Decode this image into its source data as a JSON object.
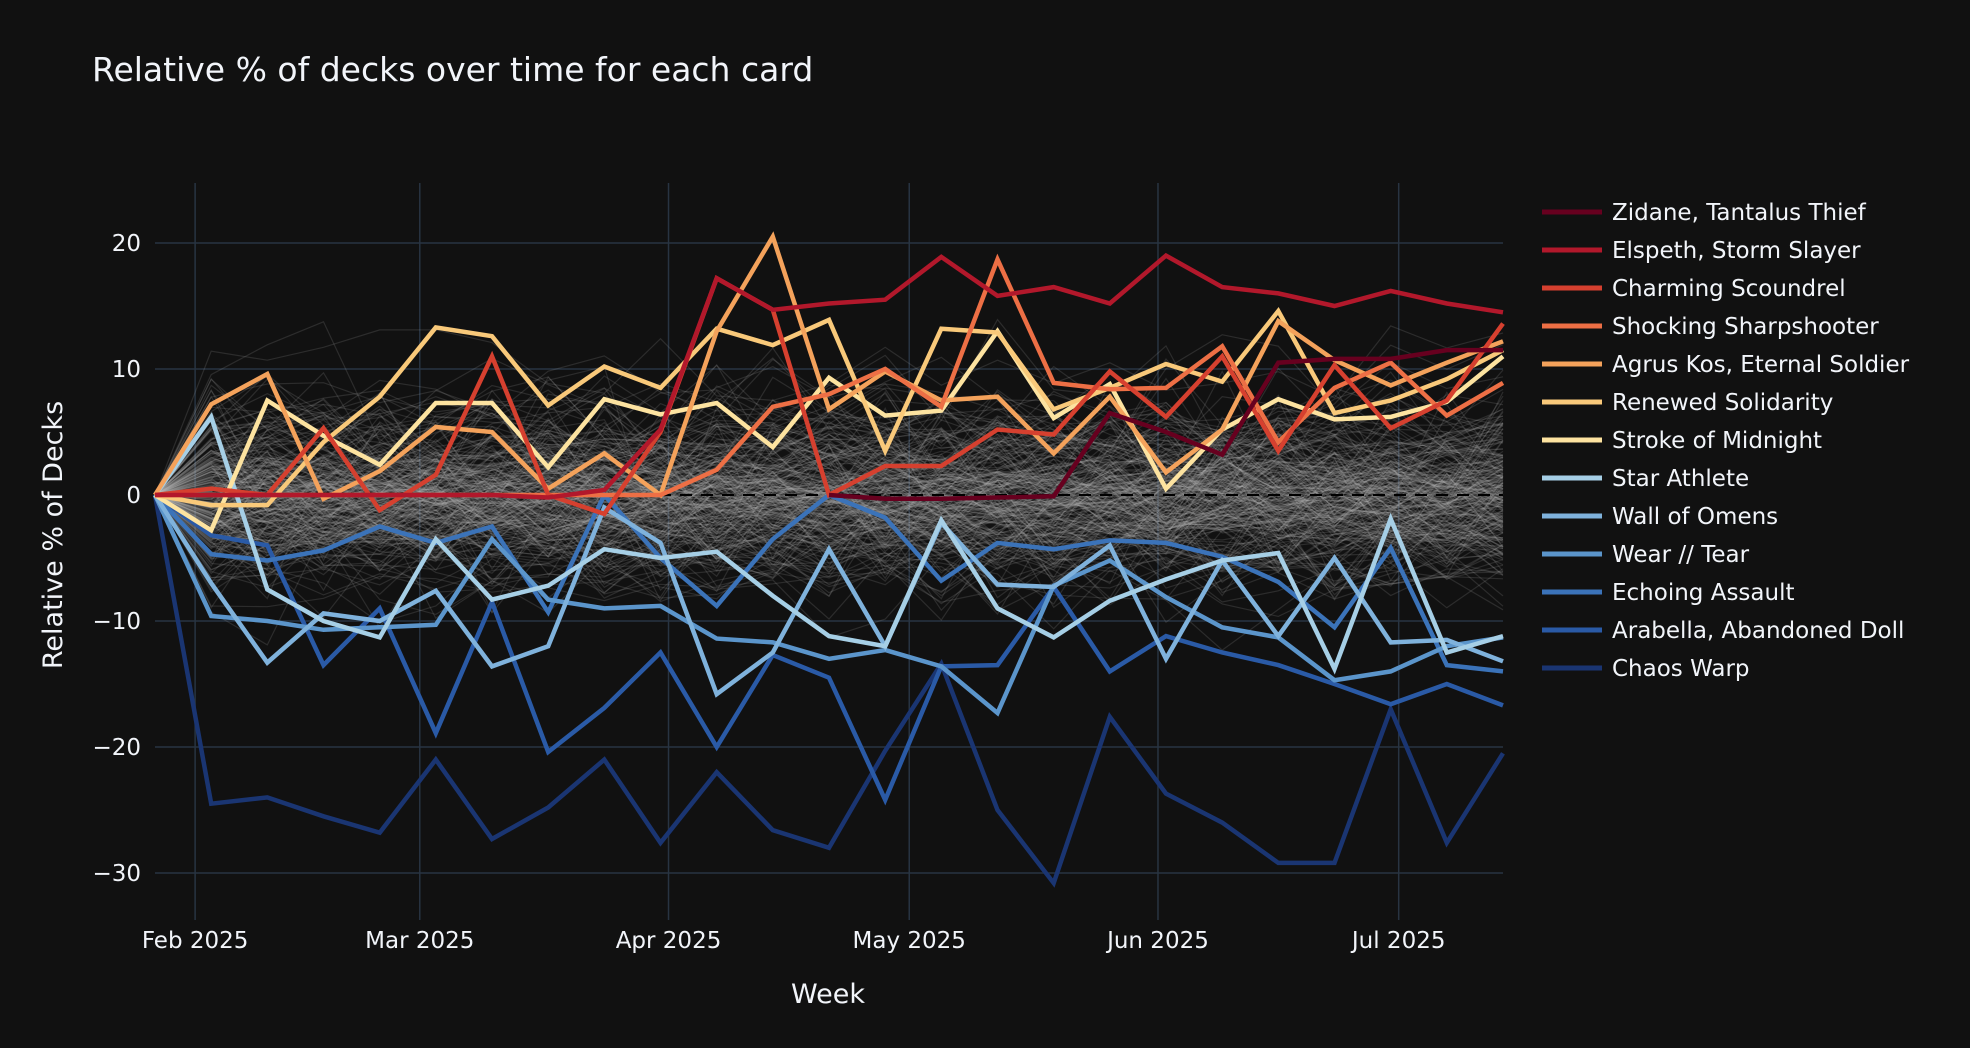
{
  "chart_data": {
    "type": "line",
    "title": "Relative  % of decks over time for each card",
    "xlabel": "Week",
    "ylabel": "Relative % of Decks",
    "ylim": [
      -33.5,
      25
    ],
    "yticks": [
      20,
      10,
      0,
      -10,
      -20,
      -30
    ],
    "ytick_labels": [
      "20",
      "10",
      "0",
      "−10",
      "−20",
      "−30"
    ],
    "x_start": "2025-01-27",
    "x_end": "2025-07-14",
    "x_interval_days": 7,
    "xticks": [
      {
        "date": "2025-02-01",
        "label": "Feb 2025"
      },
      {
        "date": "2025-03-01",
        "label": "Mar 2025"
      },
      {
        "date": "2025-04-01",
        "label": "Apr 2025"
      },
      {
        "date": "2025-05-01",
        "label": "May 2025"
      },
      {
        "date": "2025-06-01",
        "label": "Jun 2025"
      },
      {
        "date": "2025-07-01",
        "label": "Jul 2025"
      }
    ],
    "grid": true,
    "zero_line": "dashed",
    "legend_position": "right",
    "background_series": {
      "description": "other cards (unlabeled, faint gray)",
      "count": 260,
      "color": "#bbbbbb"
    },
    "series": [
      {
        "name": "Zidane, Tantalus Thief",
        "color": "#67001f",
        "values": [
          null,
          null,
          null,
          null,
          null,
          null,
          null,
          null,
          null,
          null,
          null,
          null,
          0,
          -0.3,
          -0.3,
          -0.2,
          -0.1,
          6.5,
          5.0,
          3.2,
          10.5,
          10.8,
          10.8,
          11.5,
          11.5
        ]
      },
      {
        "name": "Elspeth, Storm Slayer",
        "color": "#b2182b",
        "values": [
          0,
          0,
          0,
          0,
          0,
          0,
          0,
          -0.2,
          0.4,
          5.2,
          17.2,
          14.7,
          15.2,
          15.5,
          18.9,
          15.8,
          16.5,
          15.2,
          19.0,
          16.5,
          16.0,
          15.0,
          16.2,
          15.2,
          14.5
        ]
      },
      {
        "name": "Charming Scoundrel",
        "color": "#d6402f",
        "values": [
          0,
          0.5,
          0,
          5.3,
          -1.2,
          1.6,
          11.0,
          0,
          -1.5,
          5.0,
          17.2,
          14.7,
          0,
          2.3,
          2.3,
          5.2,
          4.8,
          9.8,
          6.2,
          11.0,
          3.5,
          10.3,
          5.3,
          7.5,
          13.6
        ]
      },
      {
        "name": "Shocking Sharpshooter",
        "color": "#ed6f45",
        "values": [
          0,
          0,
          0,
          0,
          0,
          0,
          0,
          0,
          0,
          0,
          2.0,
          7.0,
          8.0,
          10.0,
          7.0,
          18.7,
          8.9,
          8.4,
          8.5,
          11.8,
          4.2,
          8.5,
          10.5,
          6.3,
          8.9
        ]
      },
      {
        "name": "Agrus Kos, Eternal Soldier",
        "color": "#f4a25b",
        "values": [
          0,
          7.2,
          9.6,
          -0.3,
          1.9,
          5.4,
          5.0,
          0.5,
          3.3,
          0,
          13.0,
          20.5,
          6.8,
          9.8,
          7.5,
          7.8,
          3.3,
          7.8,
          1.8,
          5.2,
          13.8,
          10.7,
          8.7,
          10.5,
          12.2
        ]
      },
      {
        "name": "Renewed Solidarity",
        "color": "#f9c97a",
        "values": [
          0,
          -0.8,
          -0.8,
          4.2,
          7.8,
          13.3,
          12.6,
          7.1,
          10.2,
          8.5,
          13.2,
          11.9,
          13.9,
          3.5,
          13.2,
          12.9,
          6.8,
          8.5,
          10.4,
          9.0,
          14.6,
          6.5,
          7.5,
          9.2,
          11.5
        ]
      },
      {
        "name": "Stroke of Midnight",
        "color": "#fde3a0",
        "values": [
          0,
          -2.8,
          7.5,
          4.7,
          2.4,
          7.3,
          7.3,
          2.2,
          7.6,
          6.4,
          7.3,
          3.8,
          9.3,
          6.3,
          6.7,
          13.0,
          6.1,
          8.8,
          0.5,
          5.2,
          7.6,
          6.0,
          6.2,
          7.4,
          11.0
        ]
      },
      {
        "name": "Star Athlete",
        "color": "#a6cfe6",
        "values": [
          0,
          6.2,
          -7.5,
          -10.0,
          -11.3,
          -3.5,
          -8.3,
          -7.2,
          -4.3,
          -5.0,
          -4.5,
          -8.0,
          -11.2,
          -12.0,
          -2.0,
          -9.0,
          -11.3,
          -8.4,
          -6.7,
          -5.2,
          -4.6,
          -13.8,
          -1.9,
          -12.5,
          -11.2
        ]
      },
      {
        "name": "Wall of Omens",
        "color": "#7fb2dc",
        "values": [
          0,
          -7.0,
          -13.3,
          -9.4,
          -10.0,
          -7.6,
          -13.6,
          -12.0,
          -1.0,
          -3.8,
          -15.8,
          -12.5,
          -4.3,
          -12.0,
          -2.2,
          -7.1,
          -7.3,
          -4.0,
          -13.0,
          -5.2,
          -11.2,
          -5.0,
          -11.7,
          -11.5,
          -13.2
        ]
      },
      {
        "name": "Wear // Tear",
        "color": "#5b95cb",
        "values": [
          0,
          -9.6,
          -10.0,
          -10.7,
          -10.5,
          -10.3,
          -3.5,
          -8.3,
          -9.0,
          -8.8,
          -11.4,
          -11.7,
          -13.0,
          -12.3,
          -13.6,
          -17.3,
          -7.2,
          -5.2,
          -8.1,
          -10.5,
          -11.3,
          -14.7,
          -14.0,
          -12.0,
          -11.3
        ]
      },
      {
        "name": "Echoing Assault",
        "color": "#3b73b9",
        "values": [
          0,
          -4.7,
          -5.2,
          -4.4,
          -2.5,
          -3.8,
          -2.5,
          -9.3,
          0,
          -5.0,
          -8.8,
          -3.5,
          0,
          -1.8,
          -6.8,
          -3.8,
          -4.3,
          -3.6,
          -3.8,
          -4.9,
          -6.9,
          -10.5,
          -4.2,
          -13.5,
          -14.0
        ]
      },
      {
        "name": "Arabella, Abandoned Doll",
        "color": "#2a5aa6",
        "values": [
          0,
          -3.2,
          -4.0,
          -13.5,
          -9.0,
          -18.9,
          -8.5,
          -20.4,
          -16.9,
          -12.5,
          -20.0,
          -12.7,
          -14.5,
          -24.2,
          -13.6,
          -13.5,
          -7.3,
          -14.0,
          -11.2,
          -12.5,
          -13.5,
          -15.0,
          -16.6,
          -15.0,
          -16.7
        ]
      },
      {
        "name": "Chaos Warp",
        "color": "#1a3572",
        "values": [
          0,
          -24.5,
          -24.0,
          -25.5,
          -26.8,
          -21.0,
          -27.3,
          -24.8,
          -21.0,
          -27.6,
          -22.0,
          -26.6,
          -28.0,
          -20.3,
          -13.4,
          -25.0,
          -30.8,
          -17.6,
          -23.7,
          -26.0,
          -29.2,
          -29.2,
          -17.0,
          -27.6,
          -20.5
        ]
      }
    ]
  }
}
